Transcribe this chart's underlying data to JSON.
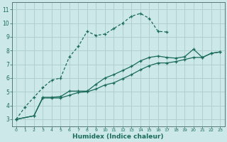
{
  "xlabel": "Humidex (Indice chaleur)",
  "bg_color": "#cce8e8",
  "grid_color": "#b0d0d0",
  "line_color": "#1a6b5a",
  "xlim": [
    -0.5,
    23.5
  ],
  "ylim": [
    2.5,
    11.5
  ],
  "xticks": [
    0,
    1,
    2,
    3,
    4,
    5,
    6,
    7,
    8,
    9,
    10,
    11,
    12,
    13,
    14,
    15,
    16,
    17,
    18,
    19,
    20,
    21,
    22,
    23
  ],
  "yticks": [
    3,
    4,
    5,
    6,
    7,
    8,
    9,
    10,
    11
  ],
  "line1_x": [
    0,
    1,
    2,
    3,
    4,
    5,
    6,
    7,
    8,
    9,
    10,
    11,
    12,
    13,
    14,
    15,
    16,
    17
  ],
  "line1_y": [
    3.0,
    3.9,
    4.6,
    5.3,
    5.85,
    6.0,
    7.55,
    8.3,
    9.4,
    9.1,
    9.2,
    9.6,
    10.0,
    10.5,
    10.7,
    10.35,
    9.4,
    9.35
  ],
  "line2_x": [
    0,
    2,
    3,
    4,
    5,
    6,
    7,
    8,
    9,
    10,
    11,
    12,
    13,
    14,
    15,
    16,
    17,
    18,
    19,
    20,
    21,
    22,
    23
  ],
  "line2_y": [
    3.0,
    3.25,
    4.6,
    4.6,
    4.65,
    5.05,
    5.05,
    5.05,
    5.55,
    6.0,
    6.25,
    6.55,
    6.85,
    7.25,
    7.5,
    7.6,
    7.5,
    7.45,
    7.55,
    8.1,
    7.5,
    7.8,
    7.9
  ],
  "line3_x": [
    0,
    2,
    3,
    4,
    5,
    6,
    7,
    8,
    9,
    10,
    11,
    12,
    13,
    14,
    15,
    16,
    17,
    18,
    19,
    20,
    21,
    22,
    23
  ],
  "line3_y": [
    3.0,
    3.25,
    4.55,
    4.55,
    4.55,
    4.75,
    4.95,
    5.0,
    5.2,
    5.5,
    5.65,
    5.95,
    6.25,
    6.6,
    6.9,
    7.1,
    7.1,
    7.2,
    7.35,
    7.5,
    7.5,
    7.8,
    7.9
  ]
}
